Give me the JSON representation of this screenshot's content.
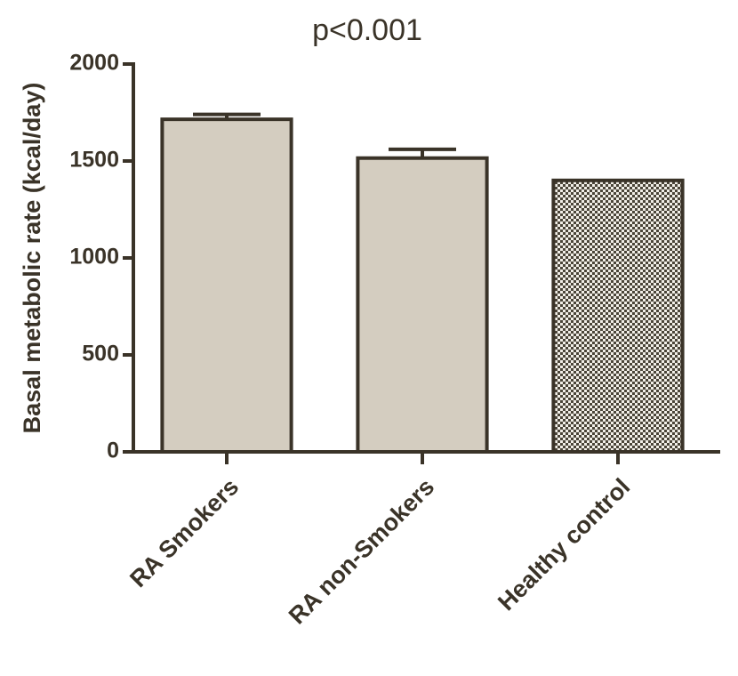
{
  "chart_data": {
    "type": "bar",
    "title": "p<0.001",
    "y_label": "Basal metabolic rate (kcal/day)",
    "categories": [
      "RA Smokers",
      "RA non-Smokers",
      "Healthy control"
    ],
    "values": [
      1715,
      1515,
      1400
    ],
    "errors": [
      25,
      45,
      null
    ],
    "colors": [
      "#d4cdc0",
      "#d4cdc0",
      "#d4cdc0"
    ],
    "patterns": [
      null,
      null,
      "checker"
    ],
    "edge_color": "#3a3328",
    "ylim": [
      0,
      2000
    ],
    "yticks": [
      0,
      500,
      1000,
      1500,
      2000
    ],
    "grid": false
  }
}
